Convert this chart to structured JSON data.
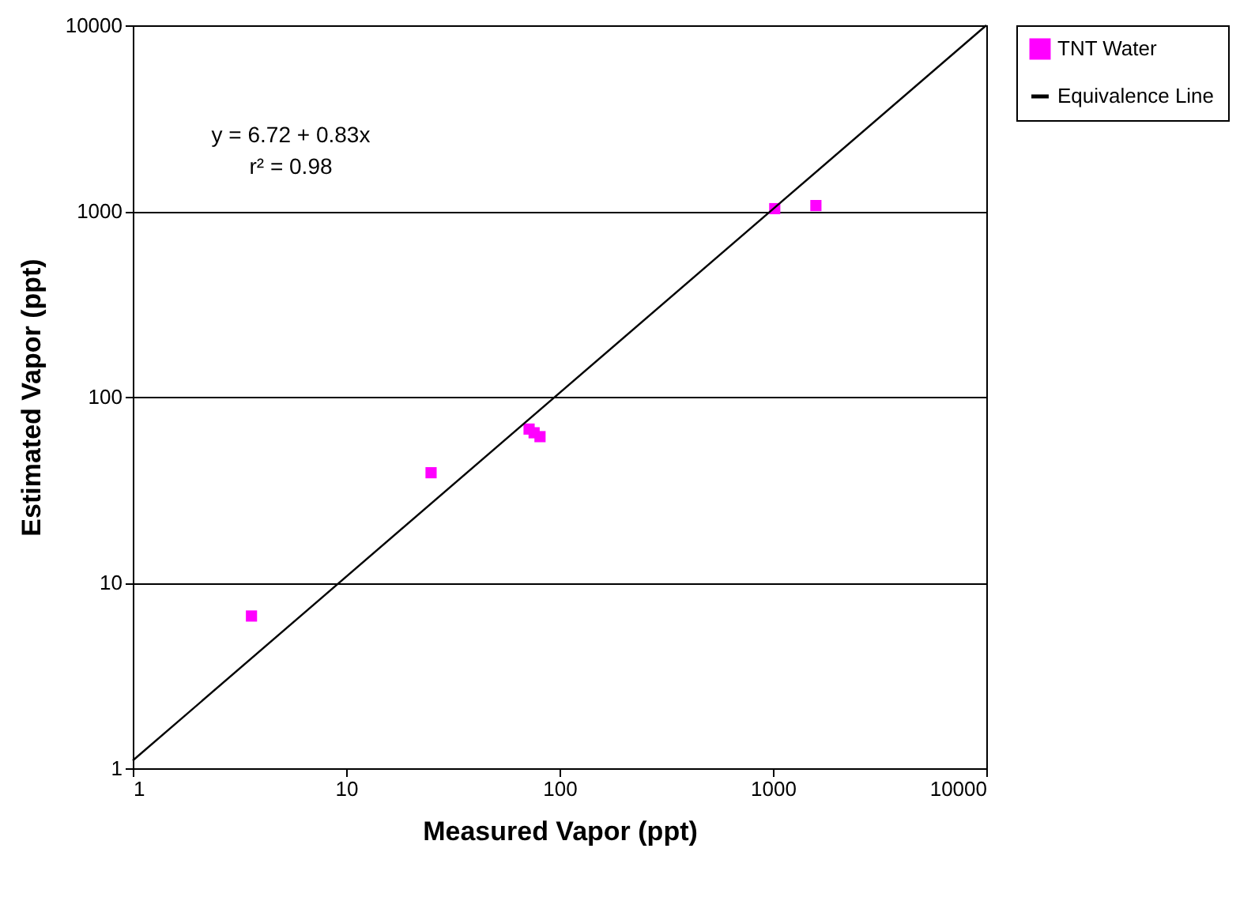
{
  "chart_data": {
    "type": "scatter",
    "xlabel": "Measured Vapor (ppt)",
    "ylabel": "Estimated Vapor (ppt)",
    "log": "xy",
    "xlim": [
      1,
      10000
    ],
    "ylim": [
      1,
      10000
    ],
    "xticks": [
      1,
      10,
      100,
      1000,
      10000
    ],
    "yticks": [
      1,
      10,
      100,
      1000,
      10000
    ],
    "grid": "y",
    "legend": "right",
    "series": [
      {
        "name": "TNT Water",
        "marker": "square",
        "color": "#ff00ff",
        "x": [
          3.6,
          25,
          72,
          76,
          81,
          1020,
          1590
        ],
        "values": [
          6.6,
          39,
          67,
          64,
          61,
          1030,
          1070
        ]
      },
      {
        "name": "Equivalence Line",
        "type": "line",
        "color": "#000000",
        "x": [
          1,
          10000
        ],
        "values": [
          1.1,
          10000
        ]
      }
    ],
    "annotations": [
      "y = 6.72 + 0.83x",
      "r² = 0.98"
    ]
  }
}
